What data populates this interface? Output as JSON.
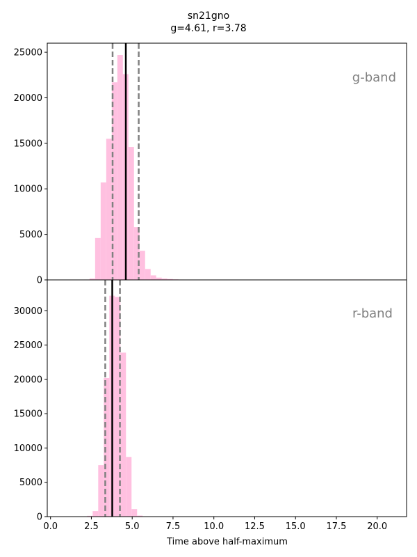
{
  "figure": {
    "title_line1": "sn21gno",
    "title_line2": "g=4.61, r=3.78",
    "xlabel": "Time above half-maximum"
  },
  "colors": {
    "bars": "#ffc0e0",
    "median_line": "#000000",
    "interval_lines": "#808080",
    "band_label": "#808080"
  },
  "chart_data": [
    {
      "type": "bar",
      "panel": "top",
      "band_label": "g-band",
      "xlim": [
        -0.2,
        21.8
      ],
      "ylim": [
        0,
        26000
      ],
      "x_ticks": [
        0.0,
        2.5,
        5.0,
        7.5,
        10.0,
        12.5,
        15.0,
        17.5,
        20.0
      ],
      "y_ticks": [
        0,
        5000,
        10000,
        15000,
        20000,
        25000
      ],
      "bin_edges": [
        2.05,
        2.39,
        2.73,
        3.07,
        3.41,
        3.75,
        4.09,
        4.43,
        4.77,
        5.11,
        5.45,
        5.79,
        6.13,
        6.47,
        6.81,
        7.15,
        7.49,
        7.83,
        8.17,
        8.51,
        8.85,
        9.19
      ],
      "counts": [
        40,
        150,
        4600,
        10700,
        15500,
        21700,
        24700,
        22600,
        14600,
        5800,
        3200,
        1200,
        500,
        250,
        150,
        100,
        60,
        40,
        30,
        20,
        10
      ],
      "extra_bins": [
        {
          "x0": 18.2,
          "x1": 19.3,
          "count": 40
        }
      ],
      "median": 4.61,
      "interval": [
        3.8,
        5.4
      ]
    },
    {
      "type": "bar",
      "panel": "bottom",
      "band_label": "r-band",
      "xlim": [
        -0.2,
        21.8
      ],
      "ylim": [
        0,
        34500
      ],
      "x_ticks": [
        0.0,
        2.5,
        5.0,
        7.5,
        10.0,
        12.5,
        15.0,
        17.5,
        20.0
      ],
      "x_tick_labels": [
        "0.0",
        "2.5",
        "5.0",
        "7.5",
        "10.0",
        "12.5",
        "15.0",
        "17.5",
        "20.0"
      ],
      "y_ticks": [
        0,
        5000,
        10000,
        15000,
        20000,
        25000,
        30000
      ],
      "bin_edges": [
        1.9,
        2.24,
        2.58,
        2.92,
        3.26,
        3.6,
        3.94,
        4.28,
        4.62,
        4.96,
        5.3,
        5.64
      ],
      "counts": [
        40,
        120,
        800,
        7500,
        20200,
        32200,
        32000,
        23900,
        8700,
        1100,
        150
      ],
      "extra_bins": [
        {
          "x0": 7.6,
          "x1": 8.6,
          "count": 30
        }
      ],
      "median": 3.78,
      "interval": [
        3.35,
        4.25
      ]
    }
  ]
}
